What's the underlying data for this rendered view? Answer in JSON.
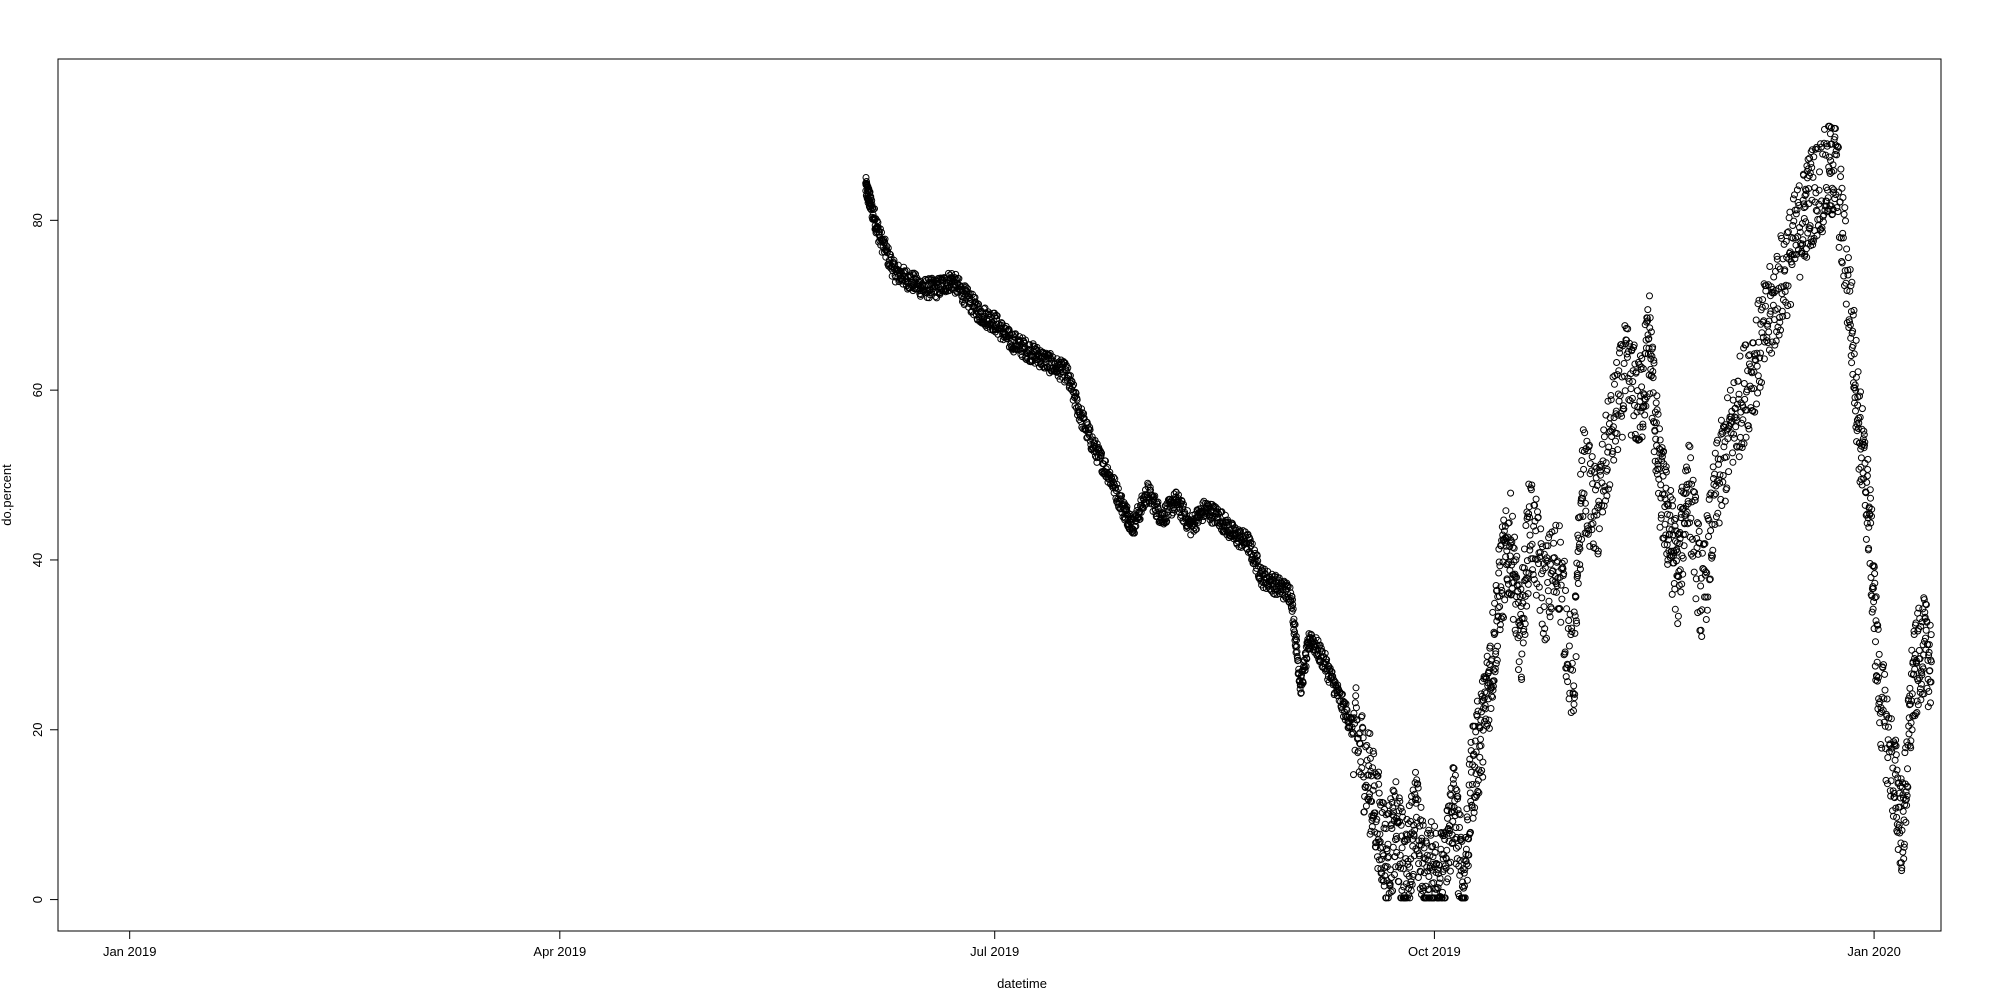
{
  "chart_data": {
    "type": "scatter",
    "title": "",
    "xlabel": "datetime",
    "ylabel": "do.percent",
    "x_ticks": [
      "Jan 2019",
      "Apr 2019",
      "Jul 2019",
      "Oct 2019",
      "Jan 2020"
    ],
    "y_ticks": [
      0,
      20,
      40,
      60,
      80
    ],
    "xlim": [
      "2018-12-17",
      "2020-01-15"
    ],
    "ylim": [
      -3.7,
      99
    ],
    "grid": false,
    "marker": "open-circle",
    "series": [
      {
        "points": [
          [
            "2019-06-04",
            84
          ],
          [
            "2019-06-05",
            82
          ],
          [
            "2019-06-07",
            78
          ],
          [
            "2019-06-10",
            74
          ],
          [
            "2019-06-13",
            73
          ],
          [
            "2019-06-16",
            72
          ],
          [
            "2019-06-19",
            72
          ],
          [
            "2019-06-22",
            73
          ],
          [
            "2019-06-25",
            71
          ],
          [
            "2019-06-28",
            69
          ],
          [
            "2019-07-01",
            68
          ],
          [
            "2019-07-04",
            66
          ],
          [
            "2019-07-07",
            65
          ],
          [
            "2019-07-10",
            64
          ],
          [
            "2019-07-13",
            63
          ],
          [
            "2019-07-16",
            62
          ],
          [
            "2019-07-19",
            57
          ],
          [
            "2019-07-22",
            53
          ],
          [
            "2019-07-25",
            50
          ],
          [
            "2019-07-28",
            46
          ],
          [
            "2019-07-30",
            44
          ],
          [
            "2019-08-02",
            48
          ],
          [
            "2019-08-05",
            45
          ],
          [
            "2019-08-08",
            47
          ],
          [
            "2019-08-11",
            44
          ],
          [
            "2019-08-14",
            46
          ],
          [
            "2019-08-17",
            45
          ],
          [
            "2019-08-20",
            43
          ],
          [
            "2019-08-23",
            42
          ],
          [
            "2019-08-26",
            38
          ],
          [
            "2019-08-29",
            37
          ],
          [
            "2019-09-01",
            36
          ],
          [
            "2019-09-03",
            25
          ],
          [
            "2019-09-05",
            31
          ],
          [
            "2019-09-08",
            28
          ],
          [
            "2019-09-11",
            24
          ],
          [
            "2019-09-14",
            20
          ],
          [
            "2019-09-17",
            15
          ],
          [
            "2019-09-19",
            10
          ],
          [
            "2019-09-21",
            5
          ],
          [
            "2019-09-23",
            8
          ],
          [
            "2019-09-25",
            3
          ],
          [
            "2019-09-27",
            10
          ],
          [
            "2019-09-29",
            2
          ],
          [
            "2019-10-01",
            4
          ],
          [
            "2019-10-03",
            2
          ],
          [
            "2019-10-05",
            12
          ],
          [
            "2019-10-07",
            1
          ],
          [
            "2019-10-09",
            15
          ],
          [
            "2019-10-11",
            20
          ],
          [
            "2019-10-13",
            28
          ],
          [
            "2019-10-15",
            38
          ],
          [
            "2019-10-17",
            42
          ],
          [
            "2019-10-19",
            30
          ],
          [
            "2019-10-21",
            45
          ],
          [
            "2019-10-24",
            36
          ],
          [
            "2019-10-27",
            40
          ],
          [
            "2019-10-30",
            25
          ],
          [
            "2019-11-01",
            50
          ],
          [
            "2019-11-04",
            45
          ],
          [
            "2019-11-07",
            55
          ],
          [
            "2019-11-10",
            62
          ],
          [
            "2019-11-13",
            58
          ],
          [
            "2019-11-15",
            66
          ],
          [
            "2019-11-17",
            50
          ],
          [
            "2019-11-19",
            44
          ],
          [
            "2019-11-21",
            38
          ],
          [
            "2019-11-23",
            50
          ],
          [
            "2019-11-26",
            35
          ],
          [
            "2019-11-29",
            48
          ],
          [
            "2019-12-02",
            55
          ],
          [
            "2019-12-05",
            60
          ],
          [
            "2019-12-08",
            65
          ],
          [
            "2019-12-11",
            70
          ],
          [
            "2019-12-14",
            75
          ],
          [
            "2019-12-17",
            80
          ],
          [
            "2019-12-19",
            83
          ],
          [
            "2019-12-22",
            85
          ],
          [
            "2019-12-24",
            86
          ],
          [
            "2019-12-27",
            70
          ],
          [
            "2019-12-29",
            55
          ],
          [
            "2019-12-31",
            45
          ],
          [
            "2020-01-02",
            25
          ],
          [
            "2020-01-05",
            15
          ],
          [
            "2020-01-07",
            8
          ],
          [
            "2020-01-09",
            25
          ],
          [
            "2020-01-11",
            30
          ],
          [
            "2020-01-13",
            28
          ]
        ]
      }
    ]
  }
}
